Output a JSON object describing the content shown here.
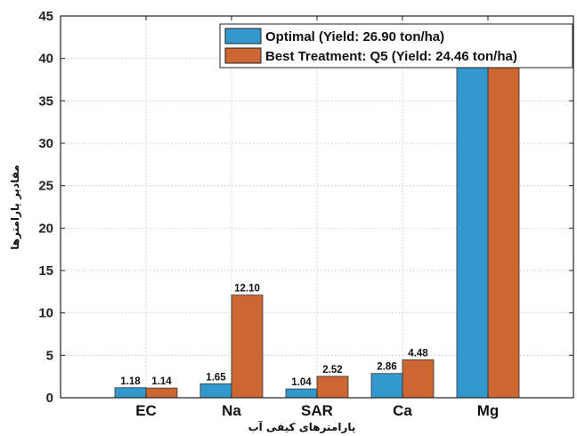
{
  "chart_data": {
    "type": "bar",
    "categories": [
      "EC",
      "Na",
      "SAR",
      "Ca",
      "Mg"
    ],
    "series": [
      {
        "name": "Optimal (Yield: 26.90 ton/ha)",
        "color": "#3399CC",
        "values": [
          1.18,
          1.65,
          1.04,
          2.86,
          39.3
        ],
        "labels": [
          "1.18",
          "1.65",
          "1.04",
          "2.86",
          ""
        ]
      },
      {
        "name": "Best Treatment: Q5 (Yield: 24.46 ton/ha)",
        "color": "#CC6633",
        "values": [
          1.14,
          12.1,
          2.52,
          4.48,
          39.3
        ],
        "labels": [
          "1.14",
          "12.10",
          "2.52",
          "4.48",
          ""
        ]
      }
    ],
    "xlabel": "پارامترهای کیفی آب",
    "ylabel": "مقادیر پارامترها",
    "ylim": [
      0,
      45
    ],
    "yticks": [
      0,
      5,
      10,
      15,
      20,
      25,
      30,
      35,
      40,
      45
    ],
    "grid": true,
    "legend_position": "top-right"
  }
}
